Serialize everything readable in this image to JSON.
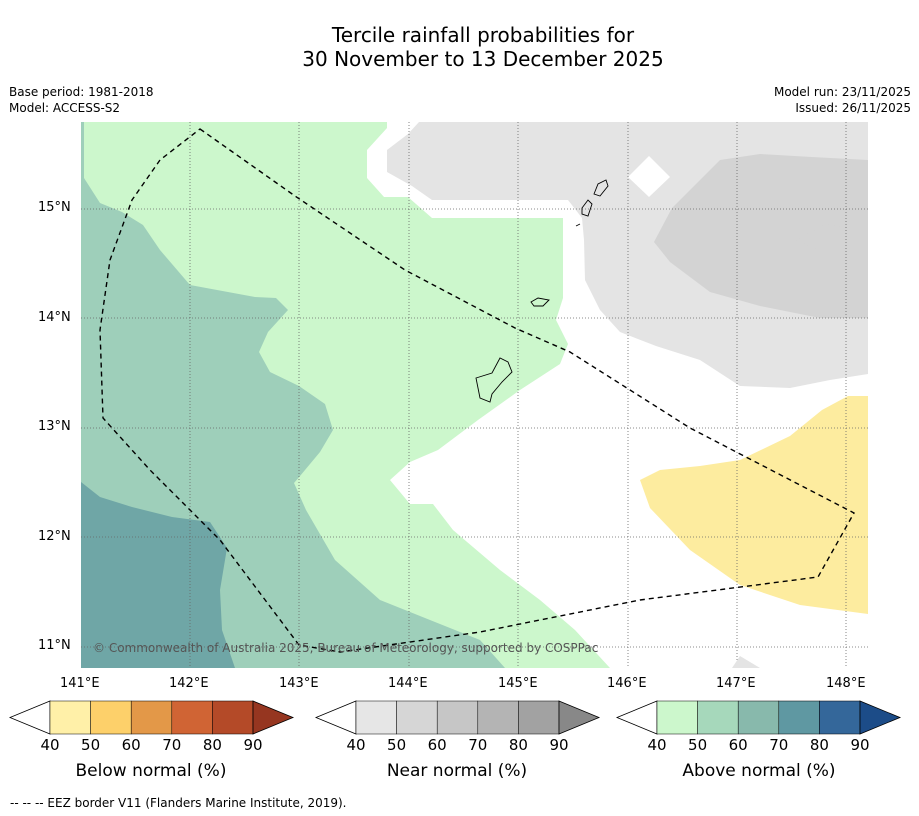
{
  "title": {
    "line1": "Tercile rainfall probabilities for",
    "line2": "30 November to 13 December 2025"
  },
  "meta": {
    "base_period": "Base period: 1981-2018",
    "model": "Model: ACCESS-S2",
    "model_run": "Model run: 23/11/2025",
    "issued": "Issued: 26/11/2025"
  },
  "axes": {
    "lat_labels": [
      "15°N",
      "14°N",
      "13°N",
      "12°N",
      "11°N"
    ],
    "lon_labels": [
      "141°E",
      "142°E",
      "143°E",
      "144°E",
      "145°E",
      "146°E",
      "147°E",
      "148°E"
    ]
  },
  "copyright": "© Commonwealth of Australia 2025, Bureau of Meteorology, supported by COSPPac",
  "colorbars": {
    "below": {
      "label": "Below normal (%)",
      "ticks": [
        "40",
        "50",
        "60",
        "70",
        "80",
        "90"
      ],
      "colors": [
        "#fff0a8",
        "#fdd06a",
        "#e39848",
        "#d06434",
        "#b44a28",
        "#963620"
      ]
    },
    "near": {
      "label": "Near normal (%)",
      "ticks": [
        "40",
        "50",
        "60",
        "70",
        "80",
        "90"
      ],
      "colors": [
        "#e6e6e6",
        "#d6d6d6",
        "#c6c6c6",
        "#b4b4b4",
        "#a2a2a2",
        "#888888"
      ]
    },
    "above": {
      "label": "Above normal (%)",
      "ticks": [
        "40",
        "50",
        "60",
        "70",
        "80",
        "90"
      ],
      "colors": [
        "#ccf7cc",
        "#a6d8bb",
        "#88b9ac",
        "#5f98a2",
        "#34679a",
        "#1c4c88"
      ]
    }
  },
  "footnote": "--  --  -- EEZ border V11 (Flanders Marine Institute, 2019).",
  "region_colors": {
    "above_40": "#ccf7cc",
    "above_50": "#9ecfba",
    "above_60": "#6fa6a6",
    "near_40": "#e4e4e4",
    "near_50": "#d3d3d3",
    "below_40": "#fdec9f",
    "white": "#ffffff"
  }
}
